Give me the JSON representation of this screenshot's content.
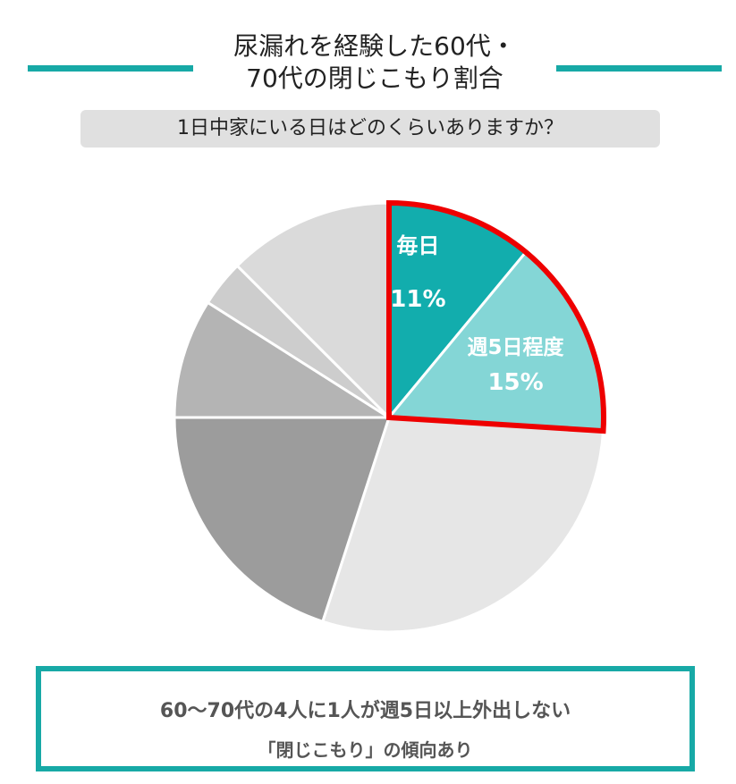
{
  "header": {
    "title_line1": "尿漏れを経験した60代・",
    "title_line2": "70代の閉じこもり割合",
    "accent_color": "#17a9a6"
  },
  "question": {
    "text": "1日中家にいる日はどのくらいありますか？",
    "background": "#e0e0e0"
  },
  "chart_data": {
    "type": "pie",
    "slices": [
      {
        "label": "毎日",
        "percent_label": "11%",
        "value": 11,
        "color": "#12adad",
        "highlight": true
      },
      {
        "label": "週5日程度",
        "percent_label": "15%",
        "value": 15,
        "color": "#84d6d6",
        "highlight": true
      },
      {
        "label": "",
        "value": 29,
        "color": "#e6e6e6"
      },
      {
        "label": "",
        "value": 20,
        "color": "#9c9c9c"
      },
      {
        "label": "",
        "value": 9,
        "color": "#b4b4b4"
      },
      {
        "label": "",
        "value": 3.5,
        "color": "#cdcdcd"
      },
      {
        "label": "",
        "value": 12.5,
        "color": "#dadada"
      }
    ],
    "highlight_color": "#ee0000"
  },
  "summary": {
    "line1": "60〜70代の4人に1人が週5日以上外出しない",
    "line2": "「閉じこもり」の傾向あり"
  }
}
